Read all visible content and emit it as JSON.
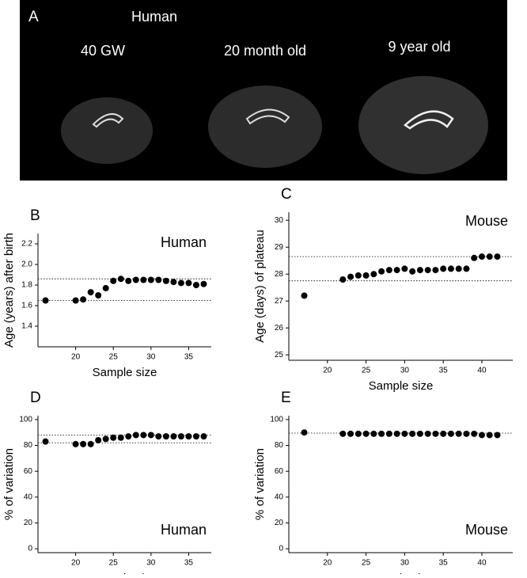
{
  "panel_a": {
    "label": "A",
    "title": "Human",
    "captions": [
      "40 GW",
      "20 month old",
      "9 year old"
    ]
  },
  "chart_data": [
    {
      "type": "scatter",
      "label": "B",
      "annotation": "Human",
      "xlabel": "Sample size",
      "ylabel": "Age (years) after birth",
      "color": "#000000",
      "x": [
        16,
        20,
        21,
        22,
        23,
        24,
        25,
        26,
        27,
        28,
        29,
        30,
        31,
        32,
        33,
        34,
        35,
        36,
        37
      ],
      "values": [
        1.65,
        1.65,
        1.66,
        1.73,
        1.7,
        1.77,
        1.84,
        1.86,
        1.84,
        1.85,
        1.85,
        1.85,
        1.85,
        1.84,
        1.83,
        1.82,
        1.82,
        1.8,
        1.81
      ],
      "xlim": [
        15,
        38
      ],
      "xticks": [
        20,
        25,
        30,
        35
      ],
      "ylim": [
        1.2,
        2.3
      ],
      "yticks": [
        1.4,
        1.6,
        1.8,
        {
          "value": 2,
          "label": "2.0"
        },
        2.2
      ],
      "reference_lines": [
        1.65,
        1.86
      ]
    },
    {
      "type": "scatter",
      "label": "C",
      "annotation": "Mouse",
      "xlabel": "Sample size",
      "ylabel": "Age (days) of plateau",
      "color": "#000000",
      "x": [
        17,
        22,
        23,
        24,
        25,
        26,
        27,
        28,
        29,
        30,
        31,
        32,
        33,
        34,
        35,
        36,
        37,
        38,
        39,
        40,
        41,
        42
      ],
      "values": [
        27.2,
        27.8,
        27.9,
        27.95,
        27.95,
        28.0,
        28.1,
        28.15,
        28.15,
        28.2,
        28.1,
        28.15,
        28.15,
        28.15,
        28.2,
        28.2,
        28.2,
        28.2,
        28.6,
        28.65,
        28.65,
        28.65
      ],
      "xlim": [
        15,
        44
      ],
      "xticks": [
        20,
        25,
        30,
        35,
        40
      ],
      "ylim": [
        24.8,
        30.3
      ],
      "yticks": [
        25,
        26,
        27,
        28,
        29,
        30
      ],
      "reference_lines": [
        27.75,
        28.65
      ]
    },
    {
      "type": "scatter",
      "label": "D",
      "annotation": "Human",
      "xlabel": "Sample size",
      "ylabel": "% of variation",
      "color": "#000000",
      "x": [
        16,
        20,
        21,
        22,
        23,
        24,
        25,
        26,
        27,
        28,
        29,
        30,
        31,
        32,
        33,
        34,
        35,
        36,
        37
      ],
      "values": [
        83,
        81,
        81,
        81,
        84,
        85,
        86,
        86,
        87,
        88,
        88,
        88,
        87,
        87,
        87,
        87,
        87,
        87,
        87
      ],
      "xlim": [
        15,
        38
      ],
      "xticks": [
        20,
        25,
        30,
        35
      ],
      "ylim": [
        -3,
        103
      ],
      "yticks": [
        0,
        20,
        40,
        60,
        80,
        100
      ],
      "reference_lines": [
        82,
        88
      ]
    },
    {
      "type": "scatter",
      "label": "E",
      "annotation": "Mouse",
      "xlabel": "Sample size",
      "ylabel": "% of variation",
      "color": "#000000",
      "x": [
        17,
        22,
        23,
        24,
        25,
        26,
        27,
        28,
        29,
        30,
        31,
        32,
        33,
        34,
        35,
        36,
        37,
        38,
        39,
        40,
        41,
        42
      ],
      "values": [
        90,
        89,
        89,
        89,
        89,
        89,
        89,
        89,
        89,
        89,
        89,
        89,
        89,
        89,
        89,
        89,
        89,
        89,
        89,
        88,
        88,
        88
      ],
      "xlim": [
        15,
        44
      ],
      "xticks": [
        20,
        25,
        30,
        35,
        40
      ],
      "ylim": [
        -3,
        103
      ],
      "yticks": [
        0,
        20,
        40,
        60,
        80,
        100
      ],
      "reference_lines": [
        89.5
      ]
    }
  ]
}
